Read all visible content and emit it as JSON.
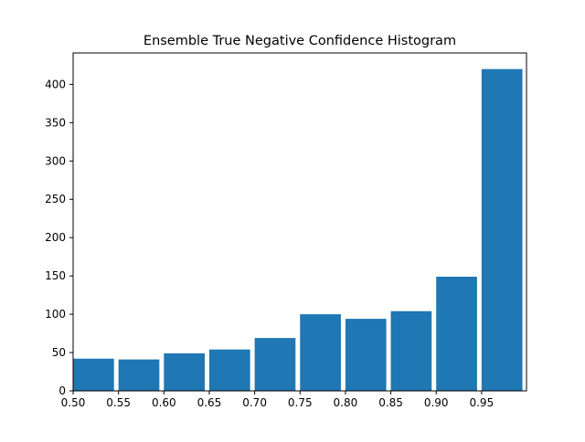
{
  "chart_data": {
    "type": "bar",
    "title": "Ensemble True Negative Confidence Histogram",
    "xlabel": "",
    "ylabel": "",
    "bins": [
      {
        "start": 0.5,
        "end": 0.545,
        "value": 42
      },
      {
        "start": 0.55,
        "end": 0.595,
        "value": 41
      },
      {
        "start": 0.6,
        "end": 0.645,
        "value": 49
      },
      {
        "start": 0.65,
        "end": 0.695,
        "value": 54
      },
      {
        "start": 0.7,
        "end": 0.745,
        "value": 69
      },
      {
        "start": 0.75,
        "end": 0.795,
        "value": 100
      },
      {
        "start": 0.8,
        "end": 0.845,
        "value": 94
      },
      {
        "start": 0.85,
        "end": 0.895,
        "value": 104
      },
      {
        "start": 0.9,
        "end": 0.945,
        "value": 149
      },
      {
        "start": 0.95,
        "end": 0.995,
        "value": 420
      }
    ],
    "xlim": [
      0.5,
      0.9995
    ],
    "ylim": [
      0,
      441
    ],
    "xticks": [
      {
        "value": 0.5,
        "label": "0.50"
      },
      {
        "value": 0.55,
        "label": "0.55"
      },
      {
        "value": 0.6,
        "label": "0.60"
      },
      {
        "value": 0.65,
        "label": "0.65"
      },
      {
        "value": 0.7,
        "label": "0.70"
      },
      {
        "value": 0.75,
        "label": "0.75"
      },
      {
        "value": 0.8,
        "label": "0.80"
      },
      {
        "value": 0.85,
        "label": "0.85"
      },
      {
        "value": 0.9,
        "label": "0.90"
      },
      {
        "value": 0.95,
        "label": "0.95"
      }
    ],
    "yticks": [
      {
        "value": 0,
        "label": "0"
      },
      {
        "value": 50,
        "label": "50"
      },
      {
        "value": 100,
        "label": "100"
      },
      {
        "value": 150,
        "label": "150"
      },
      {
        "value": 200,
        "label": "200"
      },
      {
        "value": 250,
        "label": "250"
      },
      {
        "value": 300,
        "label": "300"
      },
      {
        "value": 350,
        "label": "350"
      },
      {
        "value": 400,
        "label": "400"
      }
    ],
    "grid": false,
    "legend": "none",
    "bar_color": "#1f77b4"
  }
}
